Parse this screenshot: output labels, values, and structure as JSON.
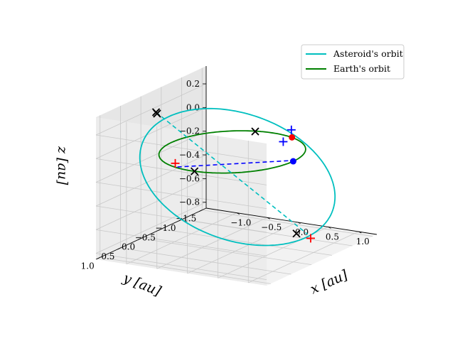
{
  "chart_data": {
    "type": "line",
    "projection": "3d",
    "xlabel": "x [au]",
    "ylabel": "y [au]",
    "zlabel": "z [au]",
    "xlim": [
      -1.5,
      1.3
    ],
    "ylim": [
      -1.6,
      1.1
    ],
    "zlim": [
      -0.85,
      0.35
    ],
    "x_ticks": [
      -1.0,
      -0.5,
      0.0,
      0.5,
      1.0
    ],
    "x_tick_labels": [
      "−1.0",
      "−0.5",
      "0.0",
      "0.5",
      "1.0"
    ],
    "y_ticks": [
      1.0,
      0.5,
      0.0,
      -0.5,
      -1.0,
      -1.5
    ],
    "y_tick_labels": [
      "1.0",
      "0.5",
      "0.0",
      "−0.5",
      "−1.0",
      "−1.5"
    ],
    "z_ticks": [
      0.2,
      0.0,
      -0.2,
      -0.4,
      -0.6,
      -0.8
    ],
    "z_tick_labels": [
      "0.2",
      "0.0",
      "−0.2",
      "−0.4",
      "−0.6",
      "−0.8"
    ],
    "grid": true,
    "legend_position": "upper right",
    "series": [
      {
        "name": "Asteroid's orbit",
        "color": "#00bfbf",
        "kind": "ellipse",
        "center": [
          -0.15,
          -0.35,
          -0.28
        ],
        "u": [
          1.45,
          -0.2,
          0.0
        ],
        "v": [
          0.1,
          0.5,
          0.66
        ]
      },
      {
        "name": "Earth's orbit",
        "color": "#008000",
        "kind": "circle",
        "center": [
          0,
          0,
          0
        ],
        "radius": 1.0
      }
    ],
    "dashed_lines": [
      {
        "color": "#00bfbf",
        "from": [
          -1.05,
          0.3,
          0.3
        ],
        "to": [
          0.6,
          -0.95,
          -0.8
        ]
      },
      {
        "color": "#0000ff",
        "from": [
          1.0,
          -0.05,
          0.0
        ],
        "to": [
          -0.3,
          0.95,
          0.0
        ]
      }
    ],
    "points": [
      {
        "marker": "dot",
        "color": "#ff0000",
        "x": 0.35,
        "y": -0.94,
        "z": 0.0
      },
      {
        "marker": "dot",
        "color": "#0000ff",
        "x": 1.0,
        "y": 0.0,
        "z": 0.0
      },
      {
        "marker": "cross",
        "color": "#000000",
        "x": 0.05,
        "y": 1.0,
        "z": 0.0
      },
      {
        "marker": "cross",
        "color": "#000000",
        "x": -0.26,
        "y": -0.95,
        "z": 0.0
      },
      {
        "marker": "cross",
        "color": "#000000",
        "x": -1.05,
        "y": 0.3,
        "z": 0.3
      },
      {
        "marker": "cross",
        "color": "#000000",
        "x": -1.0,
        "y": 0.35,
        "z": 0.3
      },
      {
        "marker": "cross",
        "color": "#000000",
        "x": 0.35,
        "y": -1.05,
        "z": -0.83
      },
      {
        "marker": "plus",
        "color": "#ff0000",
        "x": -0.4,
        "y": 0.8,
        "z": 0.0
      },
      {
        "marker": "plus",
        "color": "#ff0000",
        "x": 0.65,
        "y": -0.95,
        "z": -0.83
      },
      {
        "marker": "plus",
        "color": "#0000ff",
        "x": 0.3,
        "y": -1.0,
        "z": 0.05
      },
      {
        "marker": "plus",
        "color": "#0000ff",
        "x": 0.2,
        "y": -0.95,
        "z": -0.05
      }
    ]
  }
}
